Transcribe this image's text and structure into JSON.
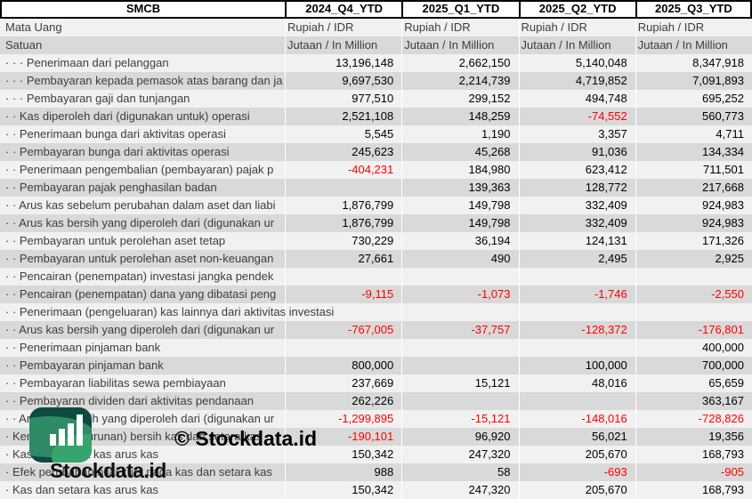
{
  "table": {
    "entity": "SMCB",
    "period_columns": [
      "2024_Q4_YTD",
      "2025_Q1_YTD",
      "2025_Q2_YTD",
      "2025_Q3_YTD"
    ],
    "rows": [
      {
        "label": "Mata Uang",
        "kind": "text",
        "values": [
          "Rupiah / IDR",
          "Rupiah / IDR",
          "Rupiah / IDR",
          "Rupiah / IDR"
        ]
      },
      {
        "label": "Satuan",
        "kind": "text",
        "values": [
          "Jutaan / In Million",
          "Jutaan / In Million",
          "Jutaan / In Million",
          "Jutaan / In Million"
        ]
      },
      {
        "label": "· · · Penerimaan dari pelanggan",
        "kind": "number",
        "values": [
          "13,196,148",
          "2,662,150",
          "5,140,048",
          "8,347,918"
        ]
      },
      {
        "label": "· · · Pembayaran kepada pemasok atas barang dan ja",
        "kind": "number",
        "values": [
          "9,697,530",
          "2,214,739",
          "4,719,852",
          "7,091,893"
        ]
      },
      {
        "label": "· · · Pembayaran gaji dan tunjangan",
        "kind": "number",
        "values": [
          "977,510",
          "299,152",
          "494,748",
          "695,252"
        ]
      },
      {
        "label": "· · Kas diperoleh dari (digunakan untuk) operasi",
        "kind": "number",
        "values": [
          "2,521,108",
          "148,259",
          "-74,552",
          "560,773"
        ]
      },
      {
        "label": "· · Penerimaan bunga dari aktivitas operasi",
        "kind": "number",
        "values": [
          "5,545",
          "1,190",
          "3,357",
          "4,711"
        ]
      },
      {
        "label": "· · Pembayaran bunga dari aktivitas operasi",
        "kind": "number",
        "values": [
          "245,623",
          "45,268",
          "91,036",
          "134,334"
        ]
      },
      {
        "label": "· · Penerimaan pengembalian (pembayaran) pajak p",
        "kind": "number",
        "values": [
          "-404,231",
          "184,980",
          "623,412",
          "711,501"
        ]
      },
      {
        "label": "· · Pembayaran pajak penghasilan badan",
        "kind": "number",
        "values": [
          "",
          "139,363",
          "128,772",
          "217,668"
        ]
      },
      {
        "label": "· · Arus kas sebelum perubahan dalam aset dan liabi",
        "kind": "number",
        "values": [
          "1,876,799",
          "149,798",
          "332,409",
          "924,983"
        ]
      },
      {
        "label": "· · Arus kas bersih yang diperoleh dari (digunakan ur",
        "kind": "number",
        "values": [
          "1,876,799",
          "149,798",
          "332,409",
          "924,983"
        ]
      },
      {
        "label": "· · Pembayaran untuk perolehan aset tetap",
        "kind": "number",
        "values": [
          "730,229",
          "36,194",
          "124,131",
          "171,326"
        ]
      },
      {
        "label": "· · Pembayaran untuk perolehan aset non-keuangan",
        "kind": "number",
        "values": [
          "27,661",
          "490",
          "2,495",
          "2,925"
        ]
      },
      {
        "label": "· · Pencairan (penempatan) investasi jangka pendek",
        "kind": "number",
        "values": [
          "",
          "",
          "",
          ""
        ]
      },
      {
        "label": "· · Pencairan (penempatan) dana yang dibatasi peng",
        "kind": "number",
        "values": [
          "-9,115",
          "-1,073",
          "-1,746",
          "-2,550"
        ]
      },
      {
        "label": "· · Penerimaan (pengeluaran) kas lainnya dari aktivitas investasi",
        "kind": "number",
        "values": [
          "",
          "",
          "",
          ""
        ]
      },
      {
        "label": "· · Arus kas bersih yang diperoleh dari (digunakan ur",
        "kind": "number",
        "values": [
          "-767,005",
          "-37,757",
          "-128,372",
          "-176,801"
        ]
      },
      {
        "label": "· · Penerimaan pinjaman bank",
        "kind": "number",
        "values": [
          "",
          "",
          "",
          "400,000"
        ]
      },
      {
        "label": "· · Pembayaran pinjaman bank",
        "kind": "number",
        "values": [
          "800,000",
          "",
          "100,000",
          "700,000"
        ]
      },
      {
        "label": "· · Pembayaran liabilitas sewa pembiayaan",
        "kind": "number",
        "values": [
          "237,669",
          "15,121",
          "48,016",
          "65,659"
        ]
      },
      {
        "label": "· · Pembayaran dividen dari aktivitas pendanaan",
        "kind": "number",
        "values": [
          "262,226",
          "",
          "",
          "363,167"
        ]
      },
      {
        "label": "· · Arus kas bersih yang diperoleh dari (digunakan ur",
        "kind": "number",
        "values": [
          "-1,299,895",
          "-15,121",
          "-148,016",
          "-728,826"
        ]
      },
      {
        "label": "· Kenaikan (penurunan) bersih kas dan setara kas",
        "kind": "number",
        "values": [
          "-190,101",
          "96,920",
          "56,021",
          "19,356"
        ]
      },
      {
        "label": "· Kas dan setara kas arus kas",
        "kind": "number",
        "values": [
          "150,342",
          "247,320",
          "205,670",
          "168,793"
        ]
      },
      {
        "label": "· Efek perubahan nilai kurs pada kas dan setara kas",
        "kind": "number",
        "values": [
          "988",
          "58",
          "-693",
          "-905"
        ]
      },
      {
        "label": "· Kas dan setara kas arus kas",
        "kind": "number",
        "values": [
          "150,342",
          "247,320",
          "205,670",
          "168,793"
        ]
      }
    ]
  },
  "watermark": {
    "brand": "Stockdata.id",
    "copyright": "© Stockdata.id"
  },
  "colors": {
    "band_light": "#f1f1f1",
    "band_dark": "#d9d9d9",
    "negative": "#ff0000",
    "header_border": "#000000",
    "logo_dark": "#0e4a40",
    "logo_mid": "#2f8a68",
    "logo_bright": "#35a56c"
  }
}
